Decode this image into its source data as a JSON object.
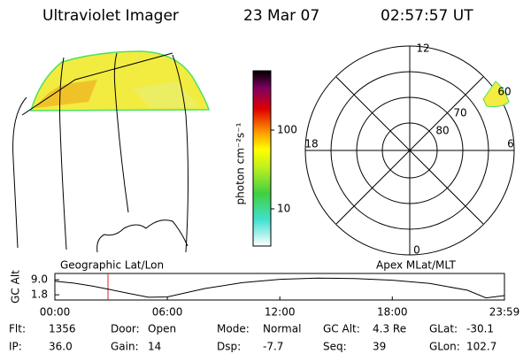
{
  "header": {
    "title": "Ultraviolet Imager",
    "date": "23 Mar 07",
    "time": "02:57:57 UT"
  },
  "colorbar": {
    "label": "photon cm⁻²s⁻¹",
    "ticks": [
      100,
      10
    ]
  },
  "polar": {
    "mlt_labels": [
      "12",
      "18",
      "6",
      "0"
    ],
    "mlat_labels": [
      "60",
      "70",
      "80"
    ]
  },
  "altitude": {
    "title_left": "Geographic Lat/Lon",
    "title_right": "Apex MLat/MLT",
    "ylabel": "GC Alt",
    "xlim": [
      0,
      23.983
    ],
    "ylim": [
      -0.7,
      12.0
    ],
    "yticks": [
      {
        "value": 9.0,
        "label": "9.0"
      },
      {
        "value": 1.8,
        "label": "1.8"
      }
    ],
    "xticks": [
      {
        "value": 0,
        "label": "00:00"
      },
      {
        "value": 6,
        "label": "06:00"
      },
      {
        "value": 12,
        "label": "12:00"
      },
      {
        "value": 18,
        "label": "18:00"
      },
      {
        "value": 23.983,
        "label": "23:59"
      }
    ],
    "x": [
      0,
      1,
      2,
      3,
      4,
      5,
      6,
      8,
      10,
      12,
      14,
      16,
      18,
      20,
      22,
      23,
      23.983
    ],
    "values": [
      8.3,
      7.4,
      6.0,
      4.2,
      2.4,
      0.6,
      0.8,
      4.8,
      7.6,
      9.2,
      9.8,
      9.6,
      8.8,
      7.2,
      4.0,
      0.3,
      1.4
    ]
  },
  "footer": {
    "items": [
      {
        "label": "Flt:",
        "value": "1356"
      },
      {
        "label": "Door:",
        "value": "Open"
      },
      {
        "label": "Mode:",
        "value": "Normal"
      },
      {
        "label": "GC Alt:",
        "value": "4.3 Re"
      },
      {
        "label": "GLat:",
        "value": "-30.1"
      },
      {
        "label": "IP:",
        "value": "36.0"
      },
      {
        "label": "Gain:",
        "value": "14"
      },
      {
        "label": "Dsp:",
        "value": "-7.7"
      },
      {
        "label": "Seq:",
        "value": "39"
      },
      {
        "label": "GLon:",
        "value": "102.7"
      }
    ]
  }
}
